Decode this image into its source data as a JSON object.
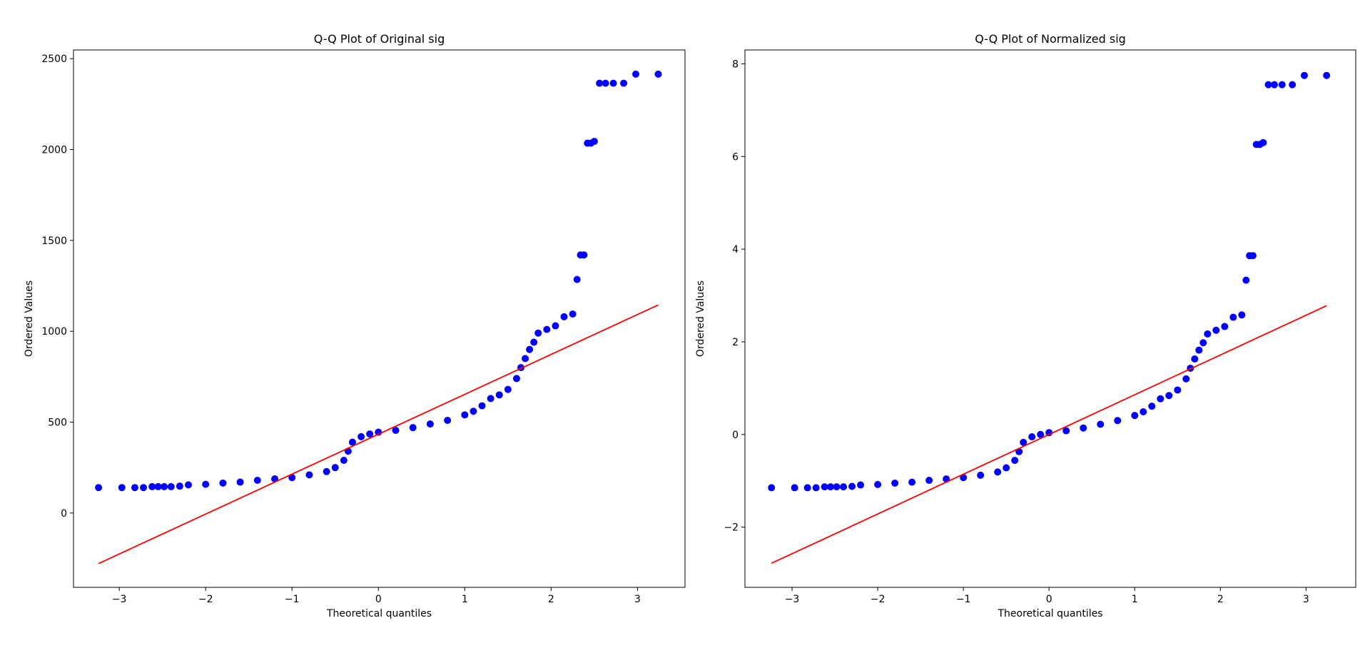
{
  "chart_data": [
    {
      "type": "scatter",
      "title": "Q-Q Plot of Original sig",
      "x_label": "Theoretical quantiles",
      "y_label": "Ordered Values",
      "xlim": [
        -3.53,
        3.55
      ],
      "ylim": [
        -409,
        2548
      ],
      "xticks": [
        {
          "value": -3,
          "label": "−3"
        },
        {
          "value": -2,
          "label": "−2"
        },
        {
          "value": -1,
          "label": "−1"
        },
        0,
        1,
        2,
        3
      ],
      "yticks": [
        0,
        500,
        1000,
        1500,
        2000,
        2500
      ],
      "series": [
        {
          "type": "scatter",
          "color": "#0000ff",
          "x": [
            -3.24,
            -2.97,
            -2.82,
            -2.72,
            -2.62,
            -2.55,
            -2.48,
            -2.4,
            -2.3,
            -2.2,
            -2.0,
            -1.8,
            -1.6,
            -1.4,
            -1.2,
            -1.0,
            -0.8,
            -0.6,
            -0.5,
            -0.4,
            -0.35,
            -0.3,
            -0.2,
            -0.1,
            0,
            0.2,
            0.4,
            0.6,
            0.8,
            1.0,
            1.1,
            1.2,
            1.3,
            1.4,
            1.5,
            1.6,
            1.65,
            1.7,
            1.75,
            1.8,
            1.85,
            1.95,
            2.05,
            2.15,
            2.25,
            2.3,
            2.34,
            2.38,
            2.42,
            2.46,
            2.5,
            2.56,
            2.63,
            2.72,
            2.84,
            2.98,
            3.24
          ],
          "values": [
            140,
            140,
            140,
            140,
            145,
            145,
            145,
            145,
            148,
            155,
            158,
            165,
            170,
            180,
            188,
            195,
            210,
            228,
            250,
            290,
            340,
            390,
            420,
            435,
            445,
            455,
            470,
            490,
            510,
            540,
            560,
            590,
            630,
            650,
            680,
            740,
            800,
            850,
            900,
            940,
            990,
            1010,
            1030,
            1080,
            1095,
            1285,
            1420,
            1420,
            2035,
            2035,
            2045,
            2365,
            2365,
            2365,
            2365,
            2415,
            2415
          ]
        },
        {
          "type": "line",
          "color": "#ff0000",
          "x": [
            -3.24,
            3.24
          ],
          "values": [
            -278,
            1145
          ]
        }
      ]
    },
    {
      "type": "scatter",
      "title": "Q-Q Plot of Normalized sig",
      "x_label": "Theoretical quantiles",
      "y_label": "Ordered Values",
      "xlim": [
        -3.55,
        3.58
      ],
      "ylim": [
        -3.3,
        8.3
      ],
      "xticks": [
        {
          "value": -3,
          "label": "−3"
        },
        {
          "value": -2,
          "label": "−2"
        },
        {
          "value": -1,
          "label": "−1"
        },
        0,
        1,
        2,
        3
      ],
      "yticks": [
        {
          "value": -2,
          "label": "−2"
        },
        0,
        2,
        4,
        6,
        8
      ],
      "series": [
        {
          "type": "scatter",
          "color": "#0000ff",
          "x": [
            -3.24,
            -2.97,
            -2.82,
            -2.72,
            -2.62,
            -2.55,
            -2.48,
            -2.4,
            -2.3,
            -2.2,
            -2.0,
            -1.8,
            -1.6,
            -1.4,
            -1.2,
            -1.0,
            -0.8,
            -0.6,
            -0.5,
            -0.4,
            -0.35,
            -0.3,
            -0.2,
            -0.1,
            0,
            0.2,
            0.4,
            0.6,
            0.8,
            1.0,
            1.1,
            1.2,
            1.3,
            1.4,
            1.5,
            1.6,
            1.65,
            1.7,
            1.75,
            1.8,
            1.85,
            1.95,
            2.05,
            2.15,
            2.25,
            2.3,
            2.34,
            2.38,
            2.42,
            2.46,
            2.5,
            2.56,
            2.63,
            2.72,
            2.84,
            2.98,
            3.24
          ],
          "values": [
            -1.15,
            -1.15,
            -1.15,
            -1.15,
            -1.13,
            -1.13,
            -1.13,
            -1.13,
            -1.12,
            -1.09,
            -1.08,
            -1.05,
            -1.03,
            -0.99,
            -0.96,
            -0.93,
            -0.88,
            -0.81,
            -0.72,
            -0.56,
            -0.37,
            -0.17,
            -0.05,
            0.0,
            0.04,
            0.08,
            0.14,
            0.22,
            0.3,
            0.41,
            0.49,
            0.61,
            0.77,
            0.84,
            0.96,
            1.2,
            1.43,
            1.63,
            1.82,
            1.98,
            2.17,
            2.25,
            2.33,
            2.53,
            2.58,
            3.33,
            3.86,
            3.86,
            6.26,
            6.26,
            6.3,
            7.55,
            7.55,
            7.55,
            7.55,
            7.75,
            7.75
          ]
        },
        {
          "type": "line",
          "color": "#ff0000",
          "x": [
            -3.24,
            3.24
          ],
          "values": [
            -2.78,
            2.78
          ]
        }
      ]
    }
  ]
}
